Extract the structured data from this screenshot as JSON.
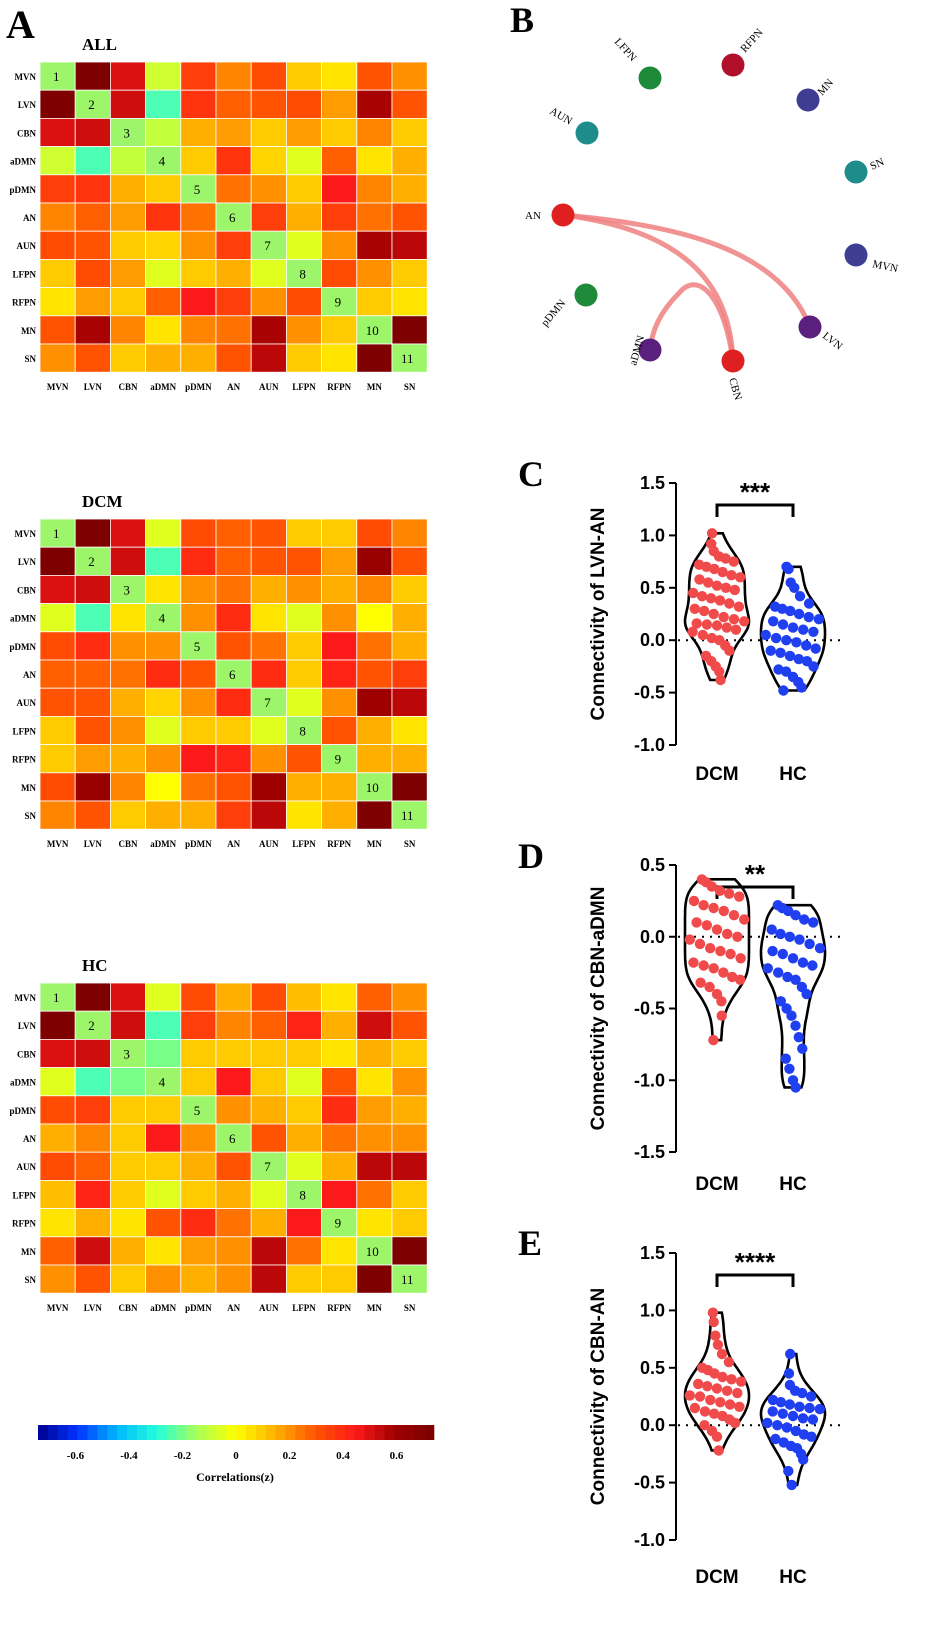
{
  "chart_data": [
    {
      "type": "heatmap",
      "panel": "A",
      "title": "ALL",
      "labels": [
        "MVN",
        "LVN",
        "CBN",
        "aDMN",
        "pDMN",
        "AN",
        "AUN",
        "LFPN",
        "RFPN",
        "MN",
        "SN"
      ],
      "diagonal_labels": [
        "1",
        "2",
        "3",
        "4",
        "5",
        "6",
        "7",
        "8",
        "9",
        "10",
        "11"
      ],
      "values": [
        [
          0.0,
          0.72,
          0.5,
          -0.08,
          0.35,
          0.22,
          0.32,
          0.1,
          0.05,
          0.3,
          0.2
        ],
        [
          0.72,
          0.0,
          0.52,
          -0.25,
          0.38,
          0.28,
          0.3,
          0.32,
          0.18,
          0.58,
          0.3
        ],
        [
          0.5,
          0.52,
          0.0,
          -0.1,
          0.15,
          0.18,
          0.1,
          0.18,
          0.1,
          0.22,
          0.1
        ],
        [
          -0.08,
          -0.25,
          -0.1,
          0.0,
          0.1,
          0.38,
          0.08,
          -0.05,
          0.28,
          0.05,
          0.15
        ],
        [
          0.35,
          0.38,
          0.15,
          0.1,
          0.0,
          0.25,
          0.2,
          0.1,
          0.45,
          0.22,
          0.15
        ],
        [
          0.22,
          0.28,
          0.18,
          0.38,
          0.25,
          0.0,
          0.35,
          0.15,
          0.35,
          0.25,
          0.3
        ],
        [
          0.32,
          0.3,
          0.1,
          0.08,
          0.2,
          0.35,
          0.0,
          -0.05,
          0.2,
          0.58,
          0.55
        ],
        [
          0.1,
          0.32,
          0.18,
          -0.05,
          0.1,
          0.15,
          -0.05,
          0.0,
          0.32,
          0.2,
          0.1
        ],
        [
          0.05,
          0.18,
          0.1,
          0.28,
          0.45,
          0.35,
          0.2,
          0.32,
          0.0,
          0.1,
          0.05
        ],
        [
          0.3,
          0.58,
          0.22,
          0.05,
          0.22,
          0.25,
          0.58,
          0.2,
          0.1,
          0.0,
          0.72
        ],
        [
          0.2,
          0.3,
          0.1,
          0.15,
          0.15,
          0.3,
          0.55,
          0.1,
          0.05,
          0.72,
          0.0
        ]
      ]
    },
    {
      "type": "heatmap",
      "panel": "A",
      "title": "DCM",
      "labels": [
        "MVN",
        "LVN",
        "CBN",
        "aDMN",
        "pDMN",
        "AN",
        "AUN",
        "LFPN",
        "RFPN",
        "MN",
        "SN"
      ],
      "diagonal_labels": [
        "1",
        "2",
        "3",
        "4",
        "5",
        "6",
        "7",
        "8",
        "9",
        "10",
        "11"
      ],
      "values": [
        [
          0.0,
          0.72,
          0.5,
          -0.05,
          0.32,
          0.28,
          0.3,
          0.1,
          0.1,
          0.32,
          0.22
        ],
        [
          0.72,
          0.0,
          0.52,
          -0.25,
          0.4,
          0.28,
          0.3,
          0.3,
          0.18,
          0.62,
          0.3
        ],
        [
          0.5,
          0.52,
          0.0,
          0.05,
          0.2,
          0.25,
          0.15,
          0.2,
          0.15,
          0.22,
          0.1
        ],
        [
          -0.05,
          -0.25,
          0.05,
          0.0,
          0.2,
          0.4,
          0.05,
          -0.05,
          0.2,
          0.0,
          0.15
        ],
        [
          0.32,
          0.4,
          0.2,
          0.2,
          0.0,
          0.3,
          0.25,
          0.1,
          0.45,
          0.25,
          0.15
        ],
        [
          0.28,
          0.28,
          0.25,
          0.4,
          0.3,
          0.0,
          0.4,
          0.1,
          0.42,
          0.3,
          0.35
        ],
        [
          0.3,
          0.3,
          0.15,
          0.08,
          0.2,
          0.4,
          0.0,
          -0.05,
          0.2,
          0.6,
          0.55
        ],
        [
          0.1,
          0.3,
          0.2,
          -0.05,
          0.1,
          0.1,
          -0.05,
          0.0,
          0.3,
          0.15,
          0.05
        ],
        [
          0.1,
          0.18,
          0.15,
          0.2,
          0.45,
          0.42,
          0.2,
          0.3,
          0.0,
          0.15,
          0.15
        ],
        [
          0.32,
          0.62,
          0.22,
          0.0,
          0.25,
          0.3,
          0.6,
          0.15,
          0.15,
          0.0,
          0.72
        ],
        [
          0.22,
          0.3,
          0.1,
          0.15,
          0.15,
          0.35,
          0.55,
          0.05,
          0.15,
          0.72,
          0.0
        ]
      ]
    },
    {
      "type": "heatmap",
      "panel": "A",
      "title": "HC",
      "labels": [
        "MVN",
        "LVN",
        "CBN",
        "aDMN",
        "pDMN",
        "AN",
        "AUN",
        "LFPN",
        "RFPN",
        "MN",
        "SN"
      ],
      "diagonal_labels": [
        "1",
        "2",
        "3",
        "4",
        "5",
        "6",
        "7",
        "8",
        "9",
        "10",
        "11"
      ],
      "values": [
        [
          0.0,
          0.72,
          0.5,
          -0.05,
          0.32,
          0.15,
          0.32,
          0.12,
          0.05,
          0.28,
          0.2
        ],
        [
          0.72,
          0.0,
          0.52,
          -0.25,
          0.35,
          0.22,
          0.28,
          0.42,
          0.15,
          0.52,
          0.3
        ],
        [
          0.5,
          0.52,
          0.0,
          -0.2,
          0.1,
          0.1,
          0.1,
          0.1,
          0.05,
          0.15,
          0.1
        ],
        [
          -0.05,
          -0.25,
          -0.2,
          0.0,
          0.1,
          0.45,
          0.1,
          -0.05,
          0.3,
          0.05,
          0.2
        ],
        [
          0.32,
          0.35,
          0.1,
          0.1,
          0.0,
          0.2,
          0.15,
          0.1,
          0.4,
          0.18,
          0.15
        ],
        [
          0.15,
          0.22,
          0.1,
          0.45,
          0.2,
          0.0,
          0.3,
          0.15,
          0.25,
          0.2,
          0.2
        ],
        [
          0.32,
          0.28,
          0.1,
          0.1,
          0.15,
          0.3,
          0.0,
          -0.05,
          0.15,
          0.55,
          0.55
        ],
        [
          0.12,
          0.42,
          0.1,
          -0.05,
          0.1,
          0.15,
          -0.05,
          0.0,
          0.45,
          0.25,
          0.1
        ],
        [
          0.05,
          0.15,
          0.05,
          0.3,
          0.4,
          0.25,
          0.15,
          0.45,
          0.0,
          0.05,
          0.1
        ],
        [
          0.28,
          0.52,
          0.15,
          0.05,
          0.18,
          0.2,
          0.55,
          0.25,
          0.05,
          0.0,
          0.72
        ],
        [
          0.2,
          0.3,
          0.1,
          0.2,
          0.15,
          0.2,
          0.55,
          0.1,
          0.1,
          0.72,
          0.0
        ]
      ]
    },
    {
      "type": "colorbar",
      "panel": "A",
      "label": "Correlations(z)",
      "range": [
        -0.74,
        0.74
      ],
      "ticks": [
        "-0.6",
        "-0.4",
        "-0.2",
        "0",
        "0.2",
        "0.4",
        "0.6"
      ],
      "tick_values": [
        -0.6,
        -0.4,
        -0.2,
        0,
        0.2,
        0.4,
        0.6
      ],
      "stops": [
        "#00008f",
        "#0033ff",
        "#00b8ff",
        "#23ffdc",
        "#a6ff5a",
        "#ffff00",
        "#ffb000",
        "#ff5500",
        "#ff1a1a",
        "#a00000",
        "#7a0000"
      ]
    },
    {
      "type": "network",
      "panel": "B",
      "nodes": [
        {
          "name": "LFPN",
          "color": "#1e8a3a"
        },
        {
          "name": "RFPN",
          "color": "#b0102a"
        },
        {
          "name": "MN",
          "color": "#3d3d94"
        },
        {
          "name": "SN",
          "color": "#1f8c8c"
        },
        {
          "name": "MVN",
          "color": "#3d3d94"
        },
        {
          "name": "LVN",
          "color": "#5b1f7e"
        },
        {
          "name": "CBN",
          "color": "#e02020"
        },
        {
          "name": "aDMN",
          "color": "#5b1f7e"
        },
        {
          "name": "pDMN",
          "color": "#1e8a3a"
        },
        {
          "name": "AN",
          "color": "#e02020"
        },
        {
          "name": "AUN",
          "color": "#1f8c8c"
        }
      ],
      "edges": [
        {
          "from": "AN",
          "to": "LVN"
        },
        {
          "from": "AN",
          "to": "CBN"
        },
        {
          "from": "CBN",
          "to": "aDMN"
        }
      ],
      "edge_color": "#f08080"
    },
    {
      "type": "violin",
      "panel": "C",
      "ylabel": "Connectivity of LVN-AN",
      "ylim": [
        -1.0,
        1.5
      ],
      "yticks": [
        "1.5",
        "1.0",
        "0.5",
        "0.0",
        "-0.5",
        "-1.0"
      ],
      "ytick_values": [
        1.5,
        1.0,
        0.5,
        0.0,
        -0.5,
        -1.0
      ],
      "categories": [
        "DCM",
        "HC"
      ],
      "significance": "***",
      "series": [
        {
          "name": "DCM",
          "color": "#f04a4a",
          "values": [
            1.02,
            0.92,
            0.85,
            0.8,
            0.78,
            0.75,
            0.72,
            0.7,
            0.68,
            0.65,
            0.62,
            0.6,
            0.58,
            0.55,
            0.52,
            0.5,
            0.48,
            0.45,
            0.42,
            0.4,
            0.38,
            0.35,
            0.32,
            0.3,
            0.28,
            0.25,
            0.22,
            0.2,
            0.18,
            0.16,
            0.15,
            0.14,
            0.12,
            0.1,
            0.08,
            0.05,
            0.02,
            0.0,
            -0.05,
            -0.1,
            -0.15,
            -0.2,
            -0.25,
            -0.3,
            -0.38
          ]
        },
        {
          "name": "HC",
          "color": "#1f3ff0",
          "values": [
            0.7,
            0.68,
            0.55,
            0.5,
            0.42,
            0.35,
            0.32,
            0.3,
            0.28,
            0.25,
            0.22,
            0.2,
            0.18,
            0.15,
            0.12,
            0.1,
            0.08,
            0.05,
            0.02,
            0.0,
            -0.02,
            -0.05,
            -0.08,
            -0.1,
            -0.12,
            -0.15,
            -0.18,
            -0.2,
            -0.25,
            -0.28,
            -0.3,
            -0.35,
            -0.4,
            -0.45,
            -0.48
          ]
        }
      ]
    },
    {
      "type": "violin",
      "panel": "D",
      "ylabel": "Connectivity of CBN-aDMN",
      "ylim": [
        -1.5,
        0.5
      ],
      "yticks": [
        "0.5",
        "0.0",
        "-0.5",
        "-1.0",
        "-1.5"
      ],
      "ytick_values": [
        0.5,
        0.0,
        -0.5,
        -1.0,
        -1.5
      ],
      "categories": [
        "DCM",
        "HC"
      ],
      "significance": "**",
      "series": [
        {
          "name": "DCM",
          "color": "#f04a4a",
          "values": [
            0.4,
            0.38,
            0.35,
            0.32,
            0.3,
            0.28,
            0.25,
            0.22,
            0.2,
            0.18,
            0.15,
            0.12,
            0.1,
            0.08,
            0.05,
            0.02,
            0.0,
            -0.02,
            -0.05,
            -0.08,
            -0.1,
            -0.12,
            -0.15,
            -0.18,
            -0.2,
            -0.22,
            -0.25,
            -0.28,
            -0.3,
            -0.32,
            -0.35,
            -0.4,
            -0.45,
            -0.55,
            -0.72
          ]
        },
        {
          "name": "HC",
          "color": "#1f3ff0",
          "values": [
            0.22,
            0.2,
            0.18,
            0.15,
            0.12,
            0.1,
            0.05,
            0.02,
            0.0,
            -0.02,
            -0.05,
            -0.08,
            -0.1,
            -0.12,
            -0.15,
            -0.18,
            -0.2,
            -0.22,
            -0.25,
            -0.28,
            -0.3,
            -0.35,
            -0.4,
            -0.45,
            -0.5,
            -0.55,
            -0.62,
            -0.7,
            -0.78,
            -0.85,
            -0.92,
            -1.0,
            -1.05
          ]
        }
      ]
    },
    {
      "type": "violin",
      "panel": "E",
      "ylabel": "Connectivity of CBN-AN",
      "ylim": [
        -1.0,
        1.5
      ],
      "yticks": [
        "1.5",
        "1.0",
        "0.5",
        "0.0",
        "-0.5",
        "-1.0"
      ],
      "ytick_values": [
        1.5,
        1.0,
        0.5,
        0.0,
        -0.5,
        -1.0
      ],
      "categories": [
        "DCM",
        "HC"
      ],
      "significance": "****",
      "series": [
        {
          "name": "DCM",
          "color": "#f04a4a",
          "values": [
            0.98,
            0.9,
            0.78,
            0.7,
            0.62,
            0.55,
            0.5,
            0.48,
            0.45,
            0.42,
            0.4,
            0.38,
            0.36,
            0.34,
            0.32,
            0.3,
            0.28,
            0.26,
            0.25,
            0.22,
            0.2,
            0.18,
            0.16,
            0.15,
            0.12,
            0.1,
            0.08,
            0.05,
            0.02,
            0.0,
            -0.05,
            -0.1,
            -0.22
          ]
        },
        {
          "name": "HC",
          "color": "#1f3ff0",
          "values": [
            0.62,
            0.45,
            0.35,
            0.3,
            0.28,
            0.25,
            0.22,
            0.2,
            0.18,
            0.16,
            0.15,
            0.14,
            0.12,
            0.1,
            0.08,
            0.06,
            0.05,
            0.02,
            0.0,
            -0.02,
            -0.05,
            -0.08,
            -0.1,
            -0.12,
            -0.15,
            -0.18,
            -0.2,
            -0.25,
            -0.3,
            -0.4,
            -0.52
          ]
        }
      ]
    }
  ],
  "panels": {
    "A": "A",
    "B": "B",
    "C": "C",
    "D": "D",
    "E": "E"
  }
}
